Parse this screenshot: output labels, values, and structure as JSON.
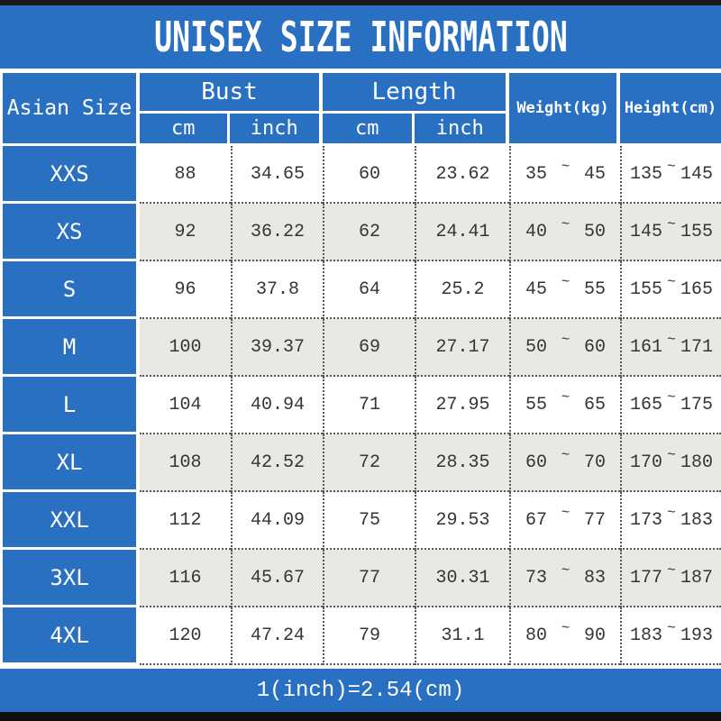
{
  "title": "UNISEX SIZE INFORMATION",
  "header": {
    "size_col": "Asian Size",
    "bust": {
      "label": "Bust",
      "sub": [
        "cm",
        "inch"
      ]
    },
    "length": {
      "label": "Length",
      "sub": [
        "cm",
        "inch"
      ]
    },
    "weight": "Weight(kg)",
    "height": "Height(cm)"
  },
  "tilde": "~",
  "rows": [
    {
      "size": "XXS",
      "bust_cm": "88",
      "bust_inch": "34.65",
      "length_cm": "60",
      "length_inch": "23.62",
      "weight_min": "35",
      "weight_max": "45",
      "height_min": "135",
      "height_max": "145"
    },
    {
      "size": "XS",
      "bust_cm": "92",
      "bust_inch": "36.22",
      "length_cm": "62",
      "length_inch": "24.41",
      "weight_min": "40",
      "weight_max": "50",
      "height_min": "145",
      "height_max": "155"
    },
    {
      "size": "S",
      "bust_cm": "96",
      "bust_inch": "37.8",
      "length_cm": "64",
      "length_inch": "25.2",
      "weight_min": "45",
      "weight_max": "55",
      "height_min": "155",
      "height_max": "165"
    },
    {
      "size": "M",
      "bust_cm": "100",
      "bust_inch": "39.37",
      "length_cm": "69",
      "length_inch": "27.17",
      "weight_min": "50",
      "weight_max": "60",
      "height_min": "161",
      "height_max": "171"
    },
    {
      "size": "L",
      "bust_cm": "104",
      "bust_inch": "40.94",
      "length_cm": "71",
      "length_inch": "27.95",
      "weight_min": "55",
      "weight_max": "65",
      "height_min": "165",
      "height_max": "175"
    },
    {
      "size": "XL",
      "bust_cm": "108",
      "bust_inch": "42.52",
      "length_cm": "72",
      "length_inch": "28.35",
      "weight_min": "60",
      "weight_max": "70",
      "height_min": "170",
      "height_max": "180"
    },
    {
      "size": "XXL",
      "bust_cm": "112",
      "bust_inch": "44.09",
      "length_cm": "75",
      "length_inch": "29.53",
      "weight_min": "67",
      "weight_max": "77",
      "height_min": "173",
      "height_max": "183"
    },
    {
      "size": "3XL",
      "bust_cm": "116",
      "bust_inch": "45.67",
      "length_cm": "77",
      "length_inch": "30.31",
      "weight_min": "73",
      "weight_max": "83",
      "height_min": "177",
      "height_max": "187"
    },
    {
      "size": "4XL",
      "bust_cm": "120",
      "bust_inch": "47.24",
      "length_cm": "79",
      "length_inch": "31.1",
      "weight_min": "80",
      "weight_max": "90",
      "height_min": "183",
      "height_max": "193"
    }
  ],
  "footer_note": "1(inch)=2.54(cm)",
  "colors": {
    "blue": "#2a70c2",
    "row_alt_gray": "#e9e8e4",
    "data_text": "#353535",
    "dotted_line": "#575757",
    "top_bar_black": "#1a1a1a",
    "bottom_bar_black": "#0e0e0e"
  },
  "chart_data": {
    "type": "table",
    "title": "UNISEX SIZE INFORMATION",
    "columns": [
      "Asian Size",
      "Bust cm",
      "Bust inch",
      "Length cm",
      "Length inch",
      "Weight(kg)",
      "Height(cm)"
    ],
    "rows": [
      [
        "XXS",
        88,
        34.65,
        60,
        23.62,
        "35~45",
        "135~145"
      ],
      [
        "XS",
        92,
        36.22,
        62,
        24.41,
        "40~50",
        "145~155"
      ],
      [
        "S",
        96,
        37.8,
        64,
        25.2,
        "45~55",
        "155~165"
      ],
      [
        "M",
        100,
        39.37,
        69,
        27.17,
        "50~60",
        "161~171"
      ],
      [
        "L",
        104,
        40.94,
        71,
        27.95,
        "55~65",
        "165~175"
      ],
      [
        "XL",
        108,
        42.52,
        72,
        28.35,
        "60~70",
        "170~180"
      ],
      [
        "XXL",
        112,
        44.09,
        75,
        29.53,
        "67~77",
        "173~183"
      ],
      [
        "3XL",
        116,
        45.67,
        77,
        30.31,
        "73~83",
        "177~187"
      ],
      [
        "4XL",
        120,
        47.24,
        79,
        31.1,
        "80~90",
        "183~193"
      ]
    ],
    "note": "1(inch)=2.54(cm)"
  }
}
